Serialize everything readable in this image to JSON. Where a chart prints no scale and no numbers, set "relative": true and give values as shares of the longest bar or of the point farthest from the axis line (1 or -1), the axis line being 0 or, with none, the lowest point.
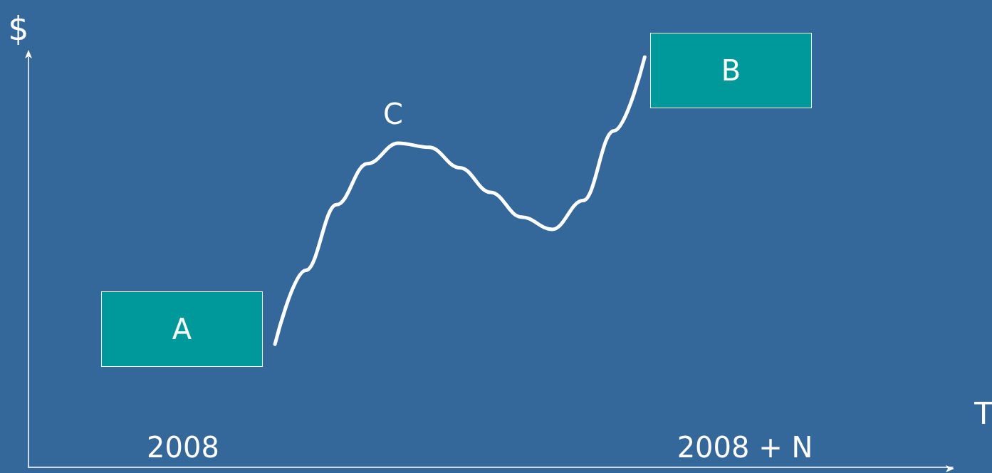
{
  "chart_data": {
    "type": "line",
    "relative": true,
    "xlabel": "T",
    "ylabel": "$",
    "categories": [
      null,
      null,
      null,
      null,
      null,
      null,
      null,
      null,
      null,
      null,
      null,
      null,
      null,
      null,
      null,
      null,
      null,
      null,
      null,
      null,
      null,
      null,
      null,
      null,
      null,
      null,
      null,
      null,
      null,
      null,
      null
    ],
    "series": [
      {
        "color": "#ffffff",
        "values": [
          null,
          null,
          null,
          null,
          null,
          null,
          null,
          null,
          0.3,
          0.48,
          0.64,
          0.74,
          0.79,
          0.78,
          0.73,
          0.67,
          0.61,
          0.58,
          0.65,
          0.82,
          1.0,
          null,
          null,
          null,
          null,
          null,
          null,
          null,
          null,
          null,
          null
        ]
      }
    ],
    "annotations": [
      "A",
      "B",
      "C",
      "2008",
      "2008 + N"
    ],
    "grid": false,
    "marker": "none",
    "line_style": "solid"
  }
}
